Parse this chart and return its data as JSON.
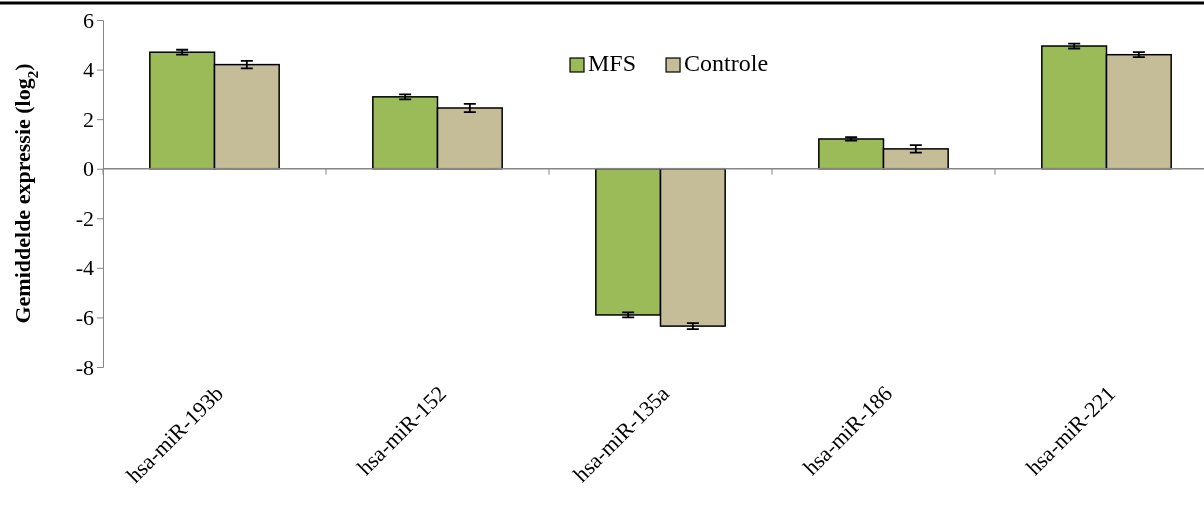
{
  "chart_data": {
    "type": "bar",
    "ylabel": "Gemiddelde expressie (log$_{2}$)",
    "categories": [
      "hsa-miR-193b",
      "hsa-miR-152",
      "hsa-miR-135a",
      "hsa-miR-186",
      "hsa-miR-221"
    ],
    "series": [
      {
        "name": "MFS",
        "color": "#9bbb59",
        "values": [
          4.7,
          2.9,
          -5.9,
          1.2,
          4.95
        ],
        "errors": [
          0.1,
          0.1,
          0.1,
          0.07,
          0.1
        ]
      },
      {
        "name": "Controle",
        "color": "#c4bd97",
        "values": [
          4.2,
          2.45,
          -6.35,
          0.8,
          4.6
        ],
        "errors": [
          0.15,
          0.17,
          0.12,
          0.15,
          0.1
        ]
      }
    ],
    "ylim": [
      -8,
      6
    ],
    "yticks": [
      -8,
      -6,
      -4,
      -2,
      0,
      2,
      4,
      6
    ],
    "legend": "top"
  }
}
